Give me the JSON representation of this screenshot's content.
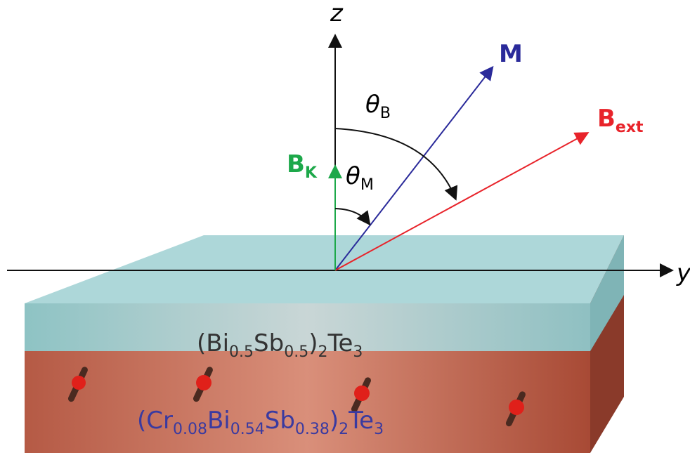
{
  "axes": {
    "z": "z",
    "y": "y"
  },
  "vectors": {
    "m": {
      "label": "M"
    },
    "b_ext": {
      "label": "B",
      "sub": "ext"
    },
    "b_k": {
      "label": "B",
      "sub": "K"
    }
  },
  "angles": {
    "theta_b": {
      "symbol": "θ",
      "sub": "B"
    },
    "theta_m": {
      "symbol": "θ",
      "sub": "M"
    }
  },
  "layers": {
    "top": {
      "parts": [
        "(Bi",
        "0.5",
        "Sb",
        "0.5",
        ")",
        "2",
        "Te",
        "3"
      ]
    },
    "bottom": {
      "parts": [
        "(Cr",
        "0.08",
        "Bi",
        "0.54",
        "Sb",
        "0.38",
        ")",
        "2",
        "Te",
        "3"
      ]
    }
  }
}
